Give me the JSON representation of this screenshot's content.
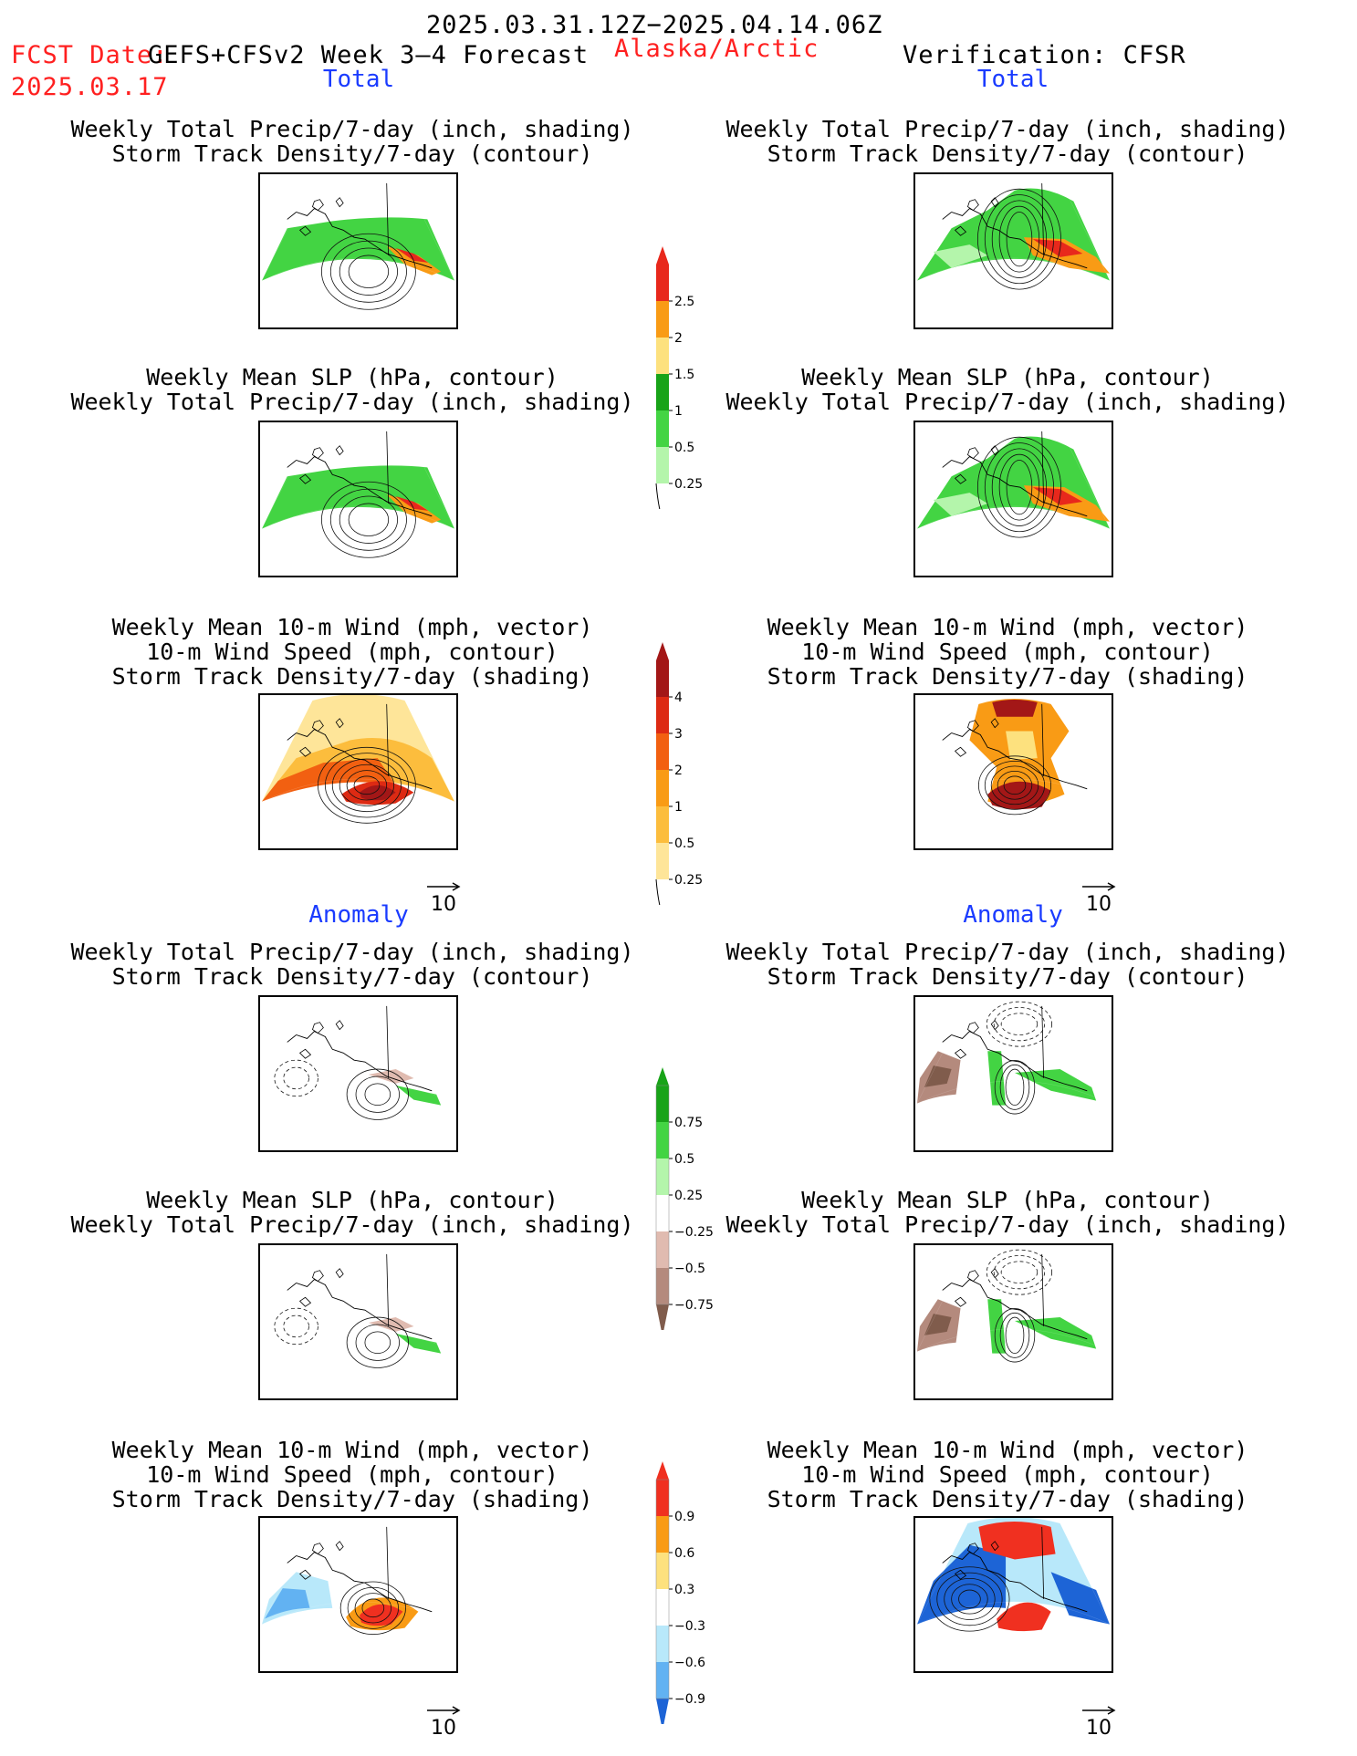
{
  "header": {
    "period": "2025.03.31.12Z−2025.04.14.06Z",
    "fcst_prefix": "FCST Date:",
    "model": "GEFS+CFSv2 Week 3–4 Forecast",
    "region": "Alaska/Arctic",
    "verification": "Verification: CFSR",
    "fcst_date": "2025.03.17"
  },
  "sections": {
    "total": "Total",
    "anomaly": "Anomaly"
  },
  "panel_titles": {
    "precip_storm": [
      "Weekly Total Precip/7-day (inch, shading)",
      "Storm Track Density/7-day (contour)"
    ],
    "slp_precip": [
      "Weekly Mean SLP (hPa, contour)",
      "Weekly Total Precip/7-day (inch, shading)"
    ],
    "wind_storm": [
      "Weekly Mean 10-m Wind (mph, vector)",
      "10-m Wind Speed (mph, contour)",
      "Storm Track Density/7-day (shading)"
    ]
  },
  "vector_reference": "10",
  "colorbars": {
    "precip_total": {
      "labels": [
        "2.5",
        "2",
        "1.5",
        "1",
        "0.5",
        "0.25"
      ],
      "colors": [
        "#e8281c",
        "#f99b15",
        "#fde17e",
        "#18a318",
        "#43d443",
        "#b4f5ab"
      ]
    },
    "storm_total": {
      "labels": [
        "4",
        "3",
        "2",
        "1",
        "0.5",
        "0.25"
      ],
      "colors": [
        "#a31717",
        "#dd2a13",
        "#f26011",
        "#f99b15",
        "#fcbd3d",
        "#fee599"
      ]
    },
    "precip_anom": {
      "labels": [
        "0.75",
        "0.5",
        "0.25",
        "−0.25",
        "−0.5",
        "−0.75"
      ],
      "colors": [
        "#18a318",
        "#43d443",
        "#b4f5ab",
        "#ffffff",
        "#e0bbb0",
        "#b48a7d",
        "#805c4c"
      ]
    },
    "storm_anom": {
      "labels": [
        "0.9",
        "0.6",
        "0.3",
        "−0.3",
        "−0.6",
        "−0.9"
      ],
      "colors": [
        "#f03020",
        "#f99b15",
        "#fde17e",
        "#ffffff",
        "#b8e8fa",
        "#62b2f2",
        "#1d64d6"
      ]
    }
  }
}
